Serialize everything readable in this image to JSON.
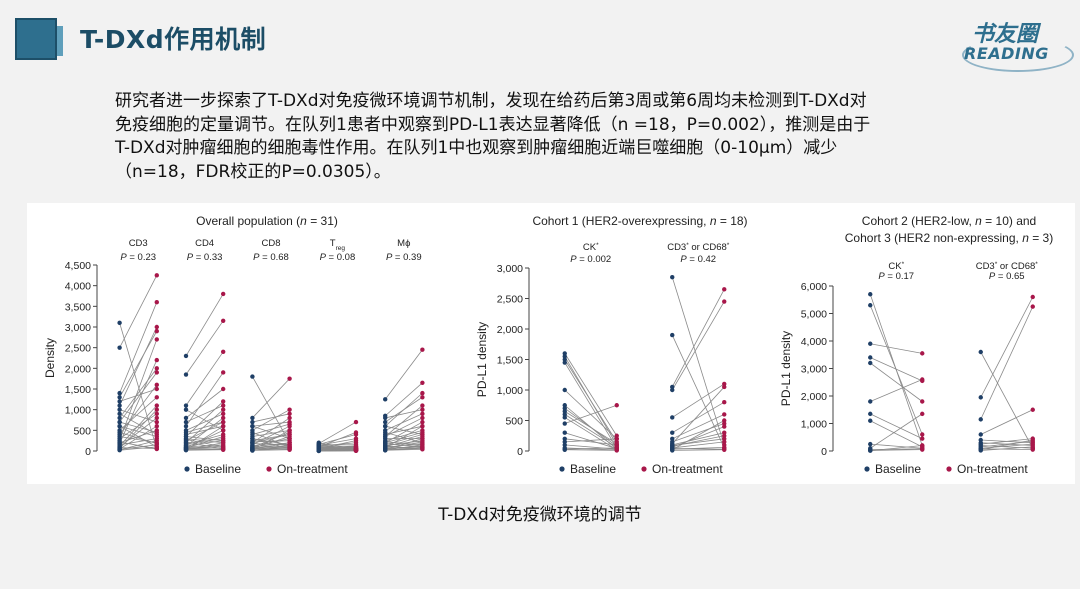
{
  "slide": {
    "title": "T-DXd作用机制",
    "logo_cn": "书友圈",
    "logo_en": "READING",
    "paragraph": "研究者进一步探索了T-DXd对免疫微环境调节机制，发现在给药后第3周或第6周均未检测到T-DXd对免疫细胞的定量调节。在队列1患者中观察到PD-L1表达显著降低（n =18，P=0.002），推测是由于T-DXd对肿瘤细胞的细胞毒性作用。在队列1中也观察到肿瘤细胞近端巨噬细胞（0-10μm）减少（n=18，FDR校正的P=0.0305）。",
    "caption": "T-DXd对免疫微环境的调节"
  },
  "colors": {
    "baseline": "#1f3f66",
    "on_treatment": "#a8174a",
    "line": "#8a8a8a"
  },
  "chart_data": [
    {
      "type": "scatter",
      "title": "Overall population (n = 31)",
      "ylabel": "Density",
      "ylim": [
        0,
        4500
      ],
      "yticks": [
        0,
        500,
        1000,
        1500,
        2000,
        2500,
        3000,
        3500,
        4000,
        4500
      ],
      "ytick_labels": [
        "0",
        "500",
        "1,000",
        "1,500",
        "2,000",
        "2,500",
        "3,000",
        "3,500",
        "4,000",
        "4,500"
      ],
      "legend": [
        "Baseline",
        "On-treatment"
      ],
      "groups": [
        {
          "label": "CD3",
          "p": "P = 0.23",
          "pairs": [
            [
              3100,
              50
            ],
            [
              2500,
              4250
            ],
            [
              1400,
              3600
            ],
            [
              1300,
              2900
            ],
            [
              1200,
              1500
            ],
            [
              1000,
              700
            ],
            [
              900,
              400
            ],
            [
              800,
              2000
            ],
            [
              700,
              1900
            ],
            [
              600,
              100
            ],
            [
              500,
              1300
            ],
            [
              400,
              1600
            ],
            [
              350,
              200
            ],
            [
              300,
              900
            ],
            [
              250,
              2700
            ],
            [
              200,
              500
            ],
            [
              180,
              2200
            ],
            [
              150,
              300
            ],
            [
              120,
              1100
            ],
            [
              100,
              800
            ],
            [
              80,
              60
            ],
            [
              60,
              1000
            ],
            [
              50,
              600
            ],
            [
              40,
              150
            ],
            [
              30,
              250
            ],
            [
              20,
              100
            ],
            [
              600,
              350
            ],
            [
              450,
              180
            ],
            [
              220,
              50
            ],
            [
              1100,
              3000
            ],
            [
              700,
              450
            ]
          ]
        },
        {
          "label": "CD4",
          "p": "P = 0.33",
          "pairs": [
            [
              2300,
              3800
            ],
            [
              1850,
              3150
            ],
            [
              1100,
              2400
            ],
            [
              1000,
              500
            ],
            [
              800,
              1500
            ],
            [
              600,
              1900
            ],
            [
              500,
              900
            ],
            [
              400,
              600
            ],
            [
              350,
              1200
            ],
            [
              300,
              200
            ],
            [
              280,
              100
            ],
            [
              250,
              700
            ],
            [
              220,
              50
            ],
            [
              200,
              1000
            ],
            [
              180,
              300
            ],
            [
              150,
              400
            ],
            [
              130,
              250
            ],
            [
              120,
              800
            ],
            [
              100,
              150
            ],
            [
              90,
              60
            ],
            [
              80,
              500
            ],
            [
              70,
              350
            ],
            [
              60,
              120
            ],
            [
              50,
              80
            ],
            [
              40,
              40
            ],
            [
              30,
              200
            ],
            [
              25,
              600
            ],
            [
              20,
              30
            ],
            [
              700,
              1100
            ],
            [
              450,
              700
            ],
            [
              350,
              250
            ]
          ]
        },
        {
          "label": "CD8",
          "p": "P = 0.68",
          "pairs": [
            [
              1800,
              200
            ],
            [
              800,
              1750
            ],
            [
              700,
              900
            ],
            [
              600,
              300
            ],
            [
              500,
              1000
            ],
            [
              450,
              100
            ],
            [
              400,
              650
            ],
            [
              350,
              500
            ],
            [
              300,
              50
            ],
            [
              250,
              400
            ],
            [
              220,
              250
            ],
            [
              200,
              800
            ],
            [
              180,
              150
            ],
            [
              150,
              600
            ],
            [
              130,
              80
            ],
            [
              120,
              300
            ],
            [
              100,
              200
            ],
            [
              90,
              450
            ],
            [
              80,
              120
            ],
            [
              70,
              60
            ],
            [
              60,
              350
            ],
            [
              50,
              100
            ],
            [
              40,
              200
            ],
            [
              30,
              40
            ],
            [
              25,
              500
            ],
            [
              20,
              80
            ],
            [
              15,
              30
            ],
            [
              10,
              150
            ],
            [
              600,
              700
            ],
            [
              300,
              150
            ],
            [
              200,
              400
            ]
          ]
        },
        {
          "label": "T",
          "label_sub": "reg",
          "p": "P = 0.08",
          "pairs": [
            [
              200,
              50
            ],
            [
              180,
              700
            ],
            [
              160,
              400
            ],
            [
              150,
              150
            ],
            [
              140,
              300
            ],
            [
              130,
              80
            ],
            [
              120,
              200
            ],
            [
              110,
              60
            ],
            [
              100,
              100
            ],
            [
              90,
              50
            ],
            [
              80,
              120
            ],
            [
              70,
              30
            ],
            [
              60,
              80
            ],
            [
              50,
              40
            ],
            [
              40,
              60
            ],
            [
              30,
              20
            ],
            [
              25,
              50
            ],
            [
              20,
              30
            ],
            [
              15,
              20
            ],
            [
              10,
              15
            ],
            [
              8,
              40
            ],
            [
              6,
              10
            ],
            [
              5,
              20
            ],
            [
              4,
              8
            ],
            [
              3,
              12
            ],
            [
              2,
              5
            ],
            [
              1,
              8
            ],
            [
              100,
              450
            ],
            [
              60,
              250
            ],
            [
              30,
              100
            ],
            [
              20,
              60
            ]
          ]
        },
        {
          "label": "Mϕ",
          "p": "P = 0.39",
          "pairs": [
            [
              1250,
              2450
            ],
            [
              850,
              1650
            ],
            [
              800,
              1000
            ],
            [
              700,
              1300
            ],
            [
              600,
              400
            ],
            [
              500,
              900
            ],
            [
              450,
              200
            ],
            [
              400,
              600
            ],
            [
              350,
              1100
            ],
            [
              300,
              300
            ],
            [
              250,
              500
            ],
            [
              220,
              150
            ],
            [
              200,
              700
            ],
            [
              180,
              100
            ],
            [
              150,
              400
            ],
            [
              130,
              250
            ],
            [
              120,
              50
            ],
            [
              100,
              350
            ],
            [
              90,
              180
            ],
            [
              80,
              600
            ],
            [
              70,
              80
            ],
            [
              60,
              220
            ],
            [
              50,
              120
            ],
            [
              40,
              300
            ],
            [
              30,
              60
            ],
            [
              25,
              150
            ],
            [
              20,
              40
            ],
            [
              15,
              90
            ],
            [
              600,
              1400
            ],
            [
              350,
              800
            ],
            [
              200,
              450
            ]
          ]
        }
      ]
    },
    {
      "type": "scatter",
      "title": "Cohort 1 (HER2-overexpressing, n = 18)",
      "ylabel": "PD-L1 density",
      "ylim": [
        0,
        3000
      ],
      "yticks": [
        0,
        500,
        1000,
        1500,
        2000,
        2500,
        3000
      ],
      "ytick_labels": [
        "0",
        "500",
        "1,000",
        "1,500",
        "2,000",
        "2,500",
        "3,000"
      ],
      "legend": [
        "Baseline",
        "On-treatment"
      ],
      "groups": [
        {
          "label": "CK",
          "label_sup": "*",
          "p": "P = 0.002",
          "pairs": [
            [
              1600,
              250
            ],
            [
              1550,
              100
            ],
            [
              1500,
              150
            ],
            [
              1450,
              50
            ],
            [
              1000,
              200
            ],
            [
              750,
              30
            ],
            [
              700,
              80
            ],
            [
              650,
              120
            ],
            [
              600,
              60
            ],
            [
              550,
              20
            ],
            [
              450,
              750
            ],
            [
              300,
              40
            ],
            [
              200,
              100
            ],
            [
              150,
              200
            ],
            [
              100,
              30
            ],
            [
              50,
              15
            ],
            [
              30,
              50
            ],
            [
              20,
              10
            ]
          ]
        },
        {
          "label": "CD3",
          "label_sup": "*",
          "label_tail": " or CD68",
          "label_tail_sup": "*",
          "p": "P = 0.42",
          "pairs": [
            [
              2850,
              100
            ],
            [
              1900,
              50
            ],
            [
              1050,
              2650
            ],
            [
              1000,
              2450
            ],
            [
              550,
              1100
            ],
            [
              300,
              800
            ],
            [
              200,
              600
            ],
            [
              150,
              450
            ],
            [
              120,
              1050
            ],
            [
              100,
              300
            ],
            [
              90,
              200
            ],
            [
              80,
              250
            ],
            [
              60,
              400
            ],
            [
              50,
              150
            ],
            [
              40,
              30
            ],
            [
              30,
              60
            ],
            [
              20,
              500
            ],
            [
              10,
              20
            ]
          ]
        }
      ]
    },
    {
      "type": "scatter",
      "title": "Cohort 2 (HER2-low, n = 10) and",
      "title_line2": "Cohort 3 (HER2 non-expressing, n = 3)",
      "ylabel": "PD-L1 density",
      "ylim": [
        0,
        6000
      ],
      "yticks": [
        0,
        1000,
        2000,
        3000,
        4000,
        5000,
        6000
      ],
      "ytick_labels": [
        "0",
        "1,000",
        "2,000",
        "3,000",
        "4,000",
        "5,000",
        "6,000"
      ],
      "legend": [
        "Baseline",
        "On-treatment"
      ],
      "groups": [
        {
          "label": "CK",
          "label_sup": "*",
          "p": "P = 0.17",
          "pairs": [
            [
              5700,
              200
            ],
            [
              5300,
              600
            ],
            [
              3900,
              3550
            ],
            [
              3400,
              2550
            ],
            [
              3200,
              1800
            ],
            [
              1800,
              2600
            ],
            [
              1350,
              450
            ],
            [
              1100,
              150
            ],
            [
              250,
              100
            ],
            [
              100,
              1350
            ],
            [
              50,
              80
            ],
            [
              20,
              50
            ],
            [
              10,
              200
            ]
          ]
        },
        {
          "label": "CD3",
          "label_sup": "*",
          "label_tail": " or CD68",
          "label_tail_sup": "*",
          "p": "P = 0.65",
          "pairs": [
            [
              3600,
              100
            ],
            [
              1950,
              5600
            ],
            [
              1150,
              5250
            ],
            [
              600,
              1500
            ],
            [
              400,
              300
            ],
            [
              300,
              200
            ],
            [
              250,
              450
            ],
            [
              200,
              100
            ],
            [
              150,
              350
            ],
            [
              100,
              250
            ],
            [
              80,
              50
            ],
            [
              50,
              400
            ],
            [
              20,
              150
            ]
          ]
        }
      ]
    }
  ]
}
